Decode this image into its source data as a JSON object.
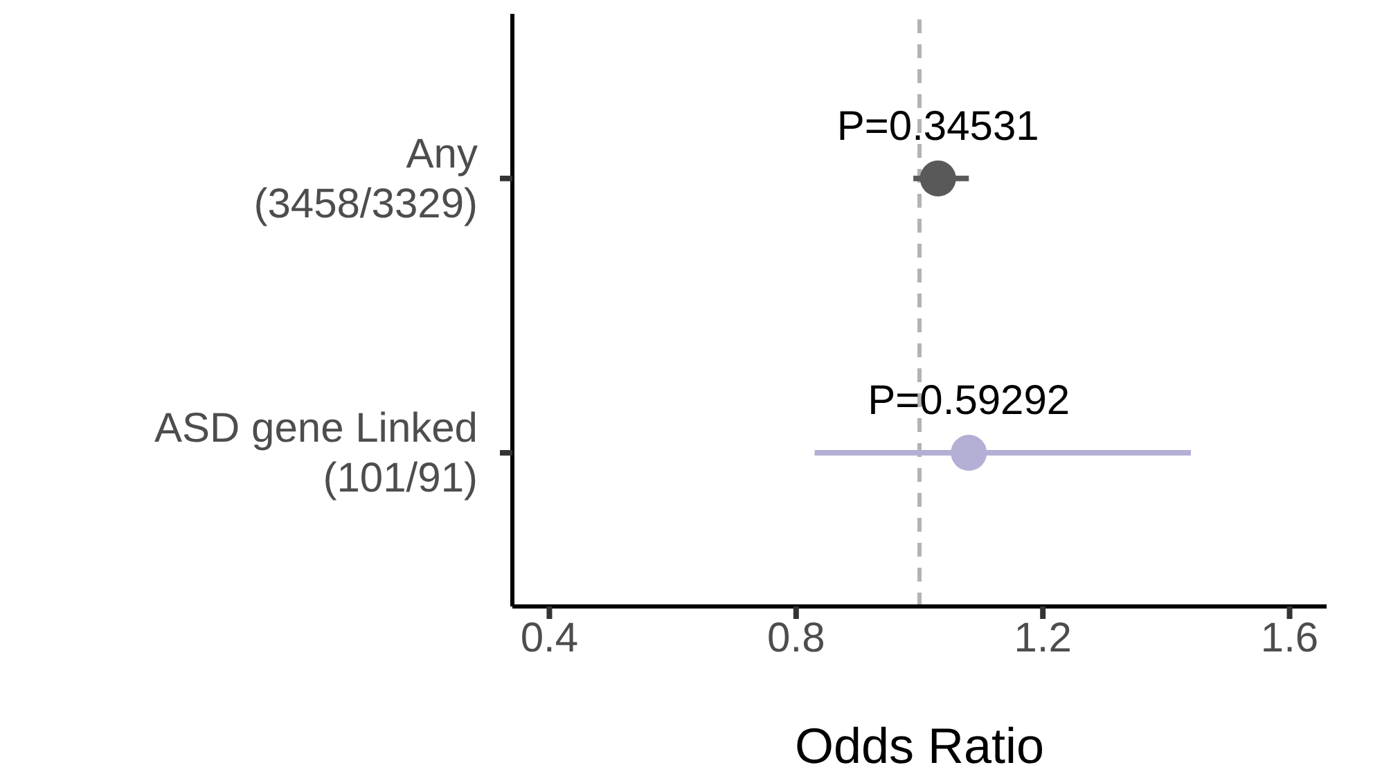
{
  "chart_data": {
    "type": "scatter",
    "orientation": "horizontal",
    "xlabel": "Odds Ratio",
    "categories": [
      "Any\n(3458/3329)",
      "ASD gene Linked\n(101/91)"
    ],
    "values": [
      1.03,
      1.08
    ],
    "colors": [
      "#595959",
      "#b3afd5"
    ],
    "errors": [
      [
        0.99,
        1.08
      ],
      [
        0.83,
        1.44
      ]
    ],
    "xlim": [
      0.34,
      1.66
    ],
    "xticks": [
      0.4,
      0.8,
      1.2,
      1.6
    ],
    "ref_lines": [
      {
        "axis": "x",
        "value": 1,
        "color": "#b3b3b3",
        "line_style": "dashed"
      }
    ],
    "annotations": [
      {
        "text": "P=0.34531",
        "x": 1.03,
        "y": "Any\n(3458/3329)"
      },
      {
        "text": "P=0.59292",
        "x": 1.08,
        "y": "ASD gene Linked\n(101/91)"
      }
    ],
    "grid": false,
    "legend": false,
    "marker": "circle"
  }
}
